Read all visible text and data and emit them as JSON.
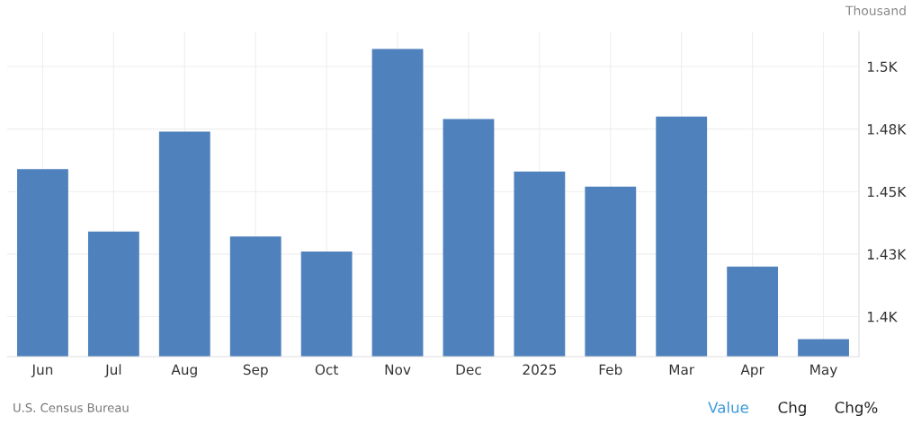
{
  "chart_data": {
    "type": "bar",
    "ylabel": "Thousand",
    "categories": [
      "Jun",
      "Jul",
      "Aug",
      "Sep",
      "Oct",
      "Nov",
      "Dec",
      "2025",
      "Feb",
      "Mar",
      "Apr",
      "May"
    ],
    "values": [
      1459,
      1434,
      1474,
      1432,
      1426,
      1507,
      1479,
      1458,
      1452,
      1480,
      1420,
      1391
    ],
    "color": "#4f81bd",
    "ylim": [
      1384,
      1514
    ],
    "yticks": [
      {
        "value": 1400,
        "label": "1.4K"
      },
      {
        "value": 1425,
        "label": "1.43K"
      },
      {
        "value": 1450,
        "label": "1.45K"
      },
      {
        "value": 1475,
        "label": "1.48K"
      },
      {
        "value": 1500,
        "label": "1.5K"
      }
    ],
    "grid": true,
    "legend": false,
    "annotations": [
      "U.S. Census Bureau",
      "Value",
      "Chg",
      "Chg%"
    ]
  }
}
